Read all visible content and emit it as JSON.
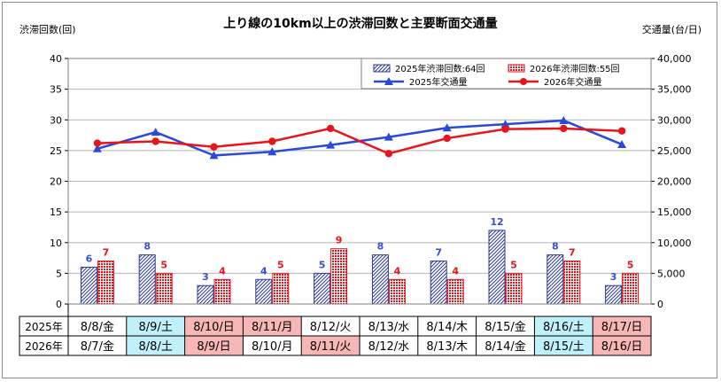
{
  "chart_data": {
    "type": "bar+line",
    "title": "上り線の10km以上の渋滞回数と主要断面交通量",
    "ylabel_left": "渋滞回数(回)",
    "ylabel_right": "交通量(台/日)",
    "ylim_left": [
      0,
      40
    ],
    "yticks_left": [
      "0",
      "5",
      "10",
      "15",
      "20",
      "25",
      "30",
      "35",
      "40"
    ],
    "ylim_right": [
      0,
      40000
    ],
    "yticks_right": [
      "0",
      "5,000",
      "10,000",
      "15,000",
      "20,000",
      "25,000",
      "30,000",
      "35,000",
      "40,000"
    ],
    "grid": true,
    "legend_position": "top-right",
    "bar_series": [
      {
        "name": "2025年渋滞回数:64回",
        "values": [
          6,
          8,
          3,
          4,
          5,
          8,
          7,
          12,
          8,
          3
        ],
        "color": "#2b3a8c",
        "pattern": "diagonal-hatch",
        "label_color": "#3a4fd1"
      },
      {
        "name": "2026年渋滞回数:55回",
        "values": [
          7,
          5,
          4,
          5,
          9,
          4,
          4,
          5,
          7,
          5
        ],
        "color": "#e8141b",
        "pattern": "checker",
        "label_color": "#e8141b"
      }
    ],
    "line_series": [
      {
        "name": "2025年交通量",
        "values": [
          25300,
          28000,
          24200,
          24800,
          25900,
          27200,
          28700,
          29300,
          29900,
          26000
        ],
        "color": "#2a49d8",
        "marker": "triangle"
      },
      {
        "name": "2026年交通量",
        "values": [
          26200,
          26500,
          25600,
          26500,
          28600,
          24500,
          27000,
          28500,
          28600,
          28200
        ],
        "color": "#e8141b",
        "marker": "circle"
      }
    ],
    "date_table": {
      "rows": [
        {
          "label": "2025年",
          "cells": [
            {
              "text": "8/8/金",
              "bg": "#ffffff"
            },
            {
              "text": "8/9/土",
              "bg": "#bff0fb"
            },
            {
              "text": "8/10/日",
              "bg": "#f8b7b7"
            },
            {
              "text": "8/11/月",
              "bg": "#f8b7b7"
            },
            {
              "text": "8/12/火",
              "bg": "#ffffff"
            },
            {
              "text": "8/13/水",
              "bg": "#ffffff"
            },
            {
              "text": "8/14/木",
              "bg": "#ffffff"
            },
            {
              "text": "8/15/金",
              "bg": "#ffffff"
            },
            {
              "text": "8/16/土",
              "bg": "#bff0fb"
            },
            {
              "text": "8/17/日",
              "bg": "#f8b7b7"
            }
          ]
        },
        {
          "label": "2026年",
          "cells": [
            {
              "text": "8/7/金",
              "bg": "#ffffff"
            },
            {
              "text": "8/8/土",
              "bg": "#bff0fb"
            },
            {
              "text": "8/9/日",
              "bg": "#f8b7b7"
            },
            {
              "text": "8/10/月",
              "bg": "#ffffff"
            },
            {
              "text": "8/11/火",
              "bg": "#f8b7b7"
            },
            {
              "text": "8/12/水",
              "bg": "#ffffff"
            },
            {
              "text": "8/13/木",
              "bg": "#ffffff"
            },
            {
              "text": "8/14/金",
              "bg": "#ffffff"
            },
            {
              "text": "8/15/土",
              "bg": "#bff0fb"
            },
            {
              "text": "8/16/日",
              "bg": "#f8b7b7"
            }
          ]
        }
      ]
    }
  }
}
